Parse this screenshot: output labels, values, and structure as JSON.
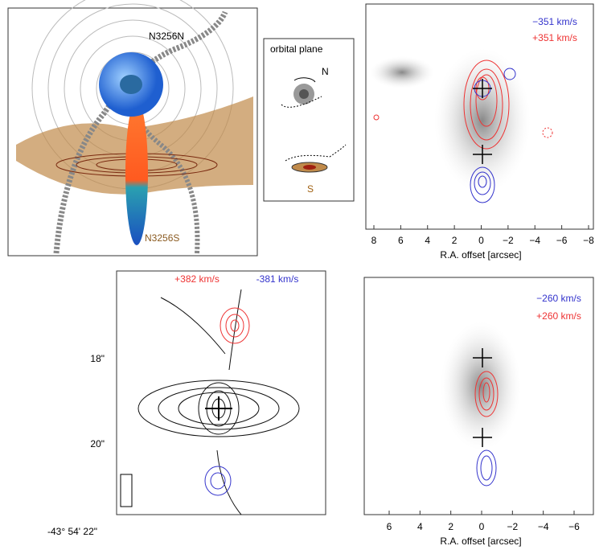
{
  "panel_a": {
    "north_label": "N3256N",
    "south_label": "N3256S"
  },
  "panel_b": {
    "title": "orbital plane",
    "north": "N",
    "south": "S"
  },
  "panel_c": {
    "velocities": [
      "−351 km/s",
      "+351 km/s"
    ],
    "xticks": [
      "8",
      "6",
      "4",
      "2",
      "0",
      "−2",
      "−4",
      "−6",
      "−8"
    ],
    "xlabel": "R.A. offset [arcsec]"
  },
  "panel_d": {
    "velocities": [
      "+382 km/s",
      "-381 km/s"
    ],
    "yticks": [
      "18\"",
      "20\""
    ],
    "dec_label": "-43° 54' 22\""
  },
  "panel_e": {
    "velocities": [
      "−260 km/s",
      "+260 km/s"
    ],
    "xticks": [
      "6",
      "4",
      "2",
      "0",
      "−2",
      "−4",
      "−6"
    ],
    "xlabel": "R.A. offset [arcsec]"
  }
}
